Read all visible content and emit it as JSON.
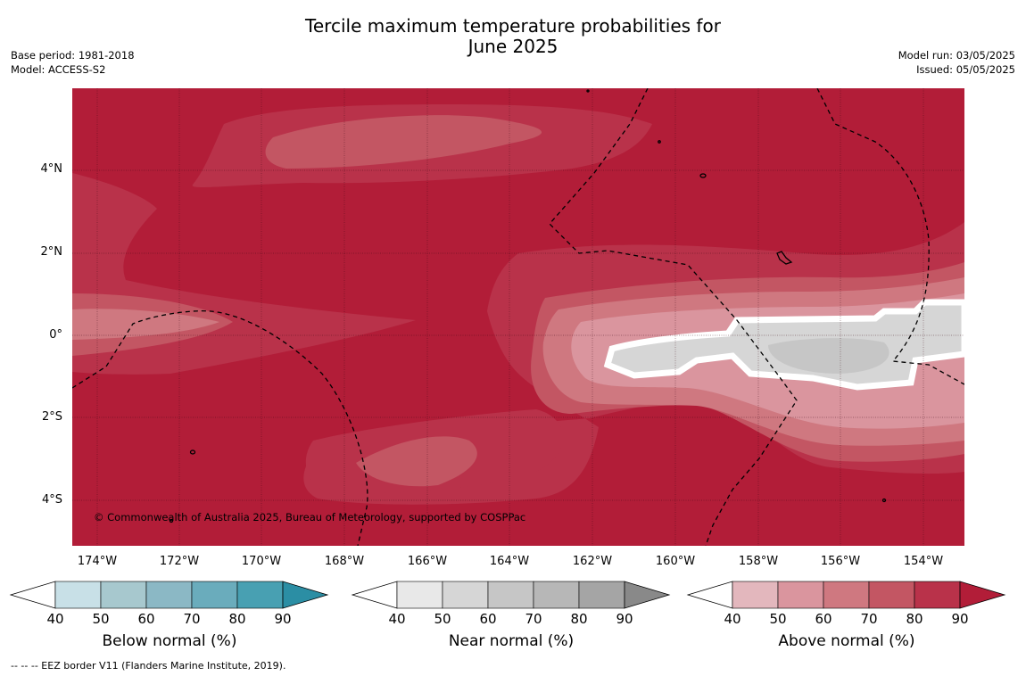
{
  "header": {
    "title_line1": "Tercile maximum temperature probabilities for",
    "title_line2": "June 2025",
    "base_period": "Base period: 1981-2018",
    "model": "Model: ACCESS-S2",
    "model_run": "Model run: 03/05/2025",
    "issued": "Issued: 05/05/2025"
  },
  "map": {
    "copyright": "© Commonwealth of Australia 2025, Bureau of Meteorology, supported by COSPPac",
    "lat_labels": [
      "4°N",
      "2°N",
      "0°",
      "2°S",
      "4°S"
    ],
    "lon_labels": [
      "174°W",
      "172°W",
      "170°W",
      "168°W",
      "166°W",
      "164°W",
      "162°W",
      "160°W",
      "158°W",
      "156°W",
      "154°W"
    ]
  },
  "legend": {
    "ticks": [
      "40",
      "50",
      "60",
      "70",
      "80",
      "90"
    ],
    "below": {
      "title": "Below normal (%)",
      "colors": [
        "#c8e0e7",
        "#a7c8ce",
        "#8bb8c5",
        "#6aacbc",
        "#48a0b2",
        "#2b8ea4"
      ]
    },
    "near": {
      "title": "Near normal (%)",
      "colors": [
        "#e8e8e8",
        "#d6d6d6",
        "#c6c6c6",
        "#b7b7b7",
        "#a5a5a5",
        "#898989"
      ]
    },
    "above": {
      "title": "Above normal (%)",
      "colors": [
        "#e3b7bd",
        "#da959e",
        "#cf7880",
        "#c35663",
        "#b9324a",
        "#b21d38"
      ]
    }
  },
  "footnote": "--  --  -- EEZ border V11 (Flanders Marine Institute, 2019)."
}
